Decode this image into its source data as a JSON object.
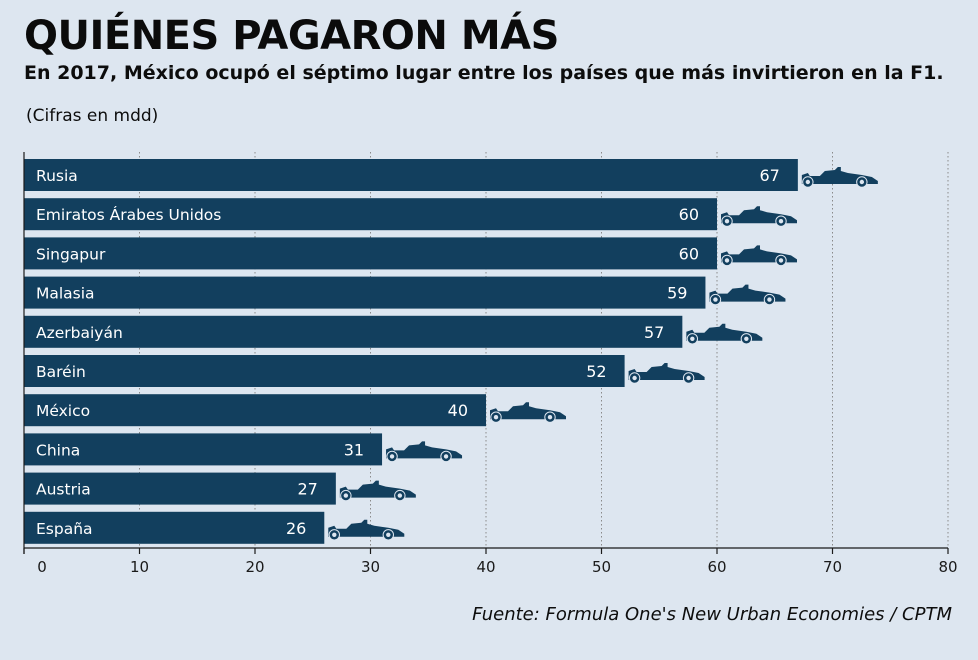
{
  "header": {
    "title": "QUIÉNES PAGARON MÁS",
    "subtitle": "En 2017, México ocupó el séptimo lugar entre los países que más invirtieron en la F1.",
    "units": "(Cifras en mdd)"
  },
  "footer": {
    "source": "Fuente:  Formula One's New Urban Economies / CPTM"
  },
  "colors": {
    "bar": "#123f5e",
    "background": "#dde6f0",
    "grid": "#8a8a8a",
    "text_on_bar": "#ffffff"
  },
  "icons": {
    "bar_end": "f1-car-icon"
  },
  "chart_data": {
    "type": "bar",
    "orientation": "horizontal",
    "categories": [
      "Rusia",
      "Emiratos Árabes Unidos",
      "Singapur",
      "Malasia",
      "Azerbaiyán",
      "Baréin",
      "México",
      "China",
      "Austria",
      "España"
    ],
    "values": [
      67,
      60,
      60,
      59,
      57,
      52,
      40,
      31,
      27,
      26
    ],
    "data_labels": [
      "67",
      "60",
      "60",
      "59",
      "57",
      "52",
      "40",
      "31",
      "27",
      "26"
    ],
    "xlim": [
      0,
      80
    ],
    "xticks": [
      0,
      10,
      20,
      30,
      40,
      50,
      60,
      70,
      80
    ],
    "xtick_labels": [
      "0",
      "10",
      "20",
      "30",
      "40",
      "50",
      "60",
      "70",
      "80"
    ],
    "grid": "vertical dashed"
  }
}
